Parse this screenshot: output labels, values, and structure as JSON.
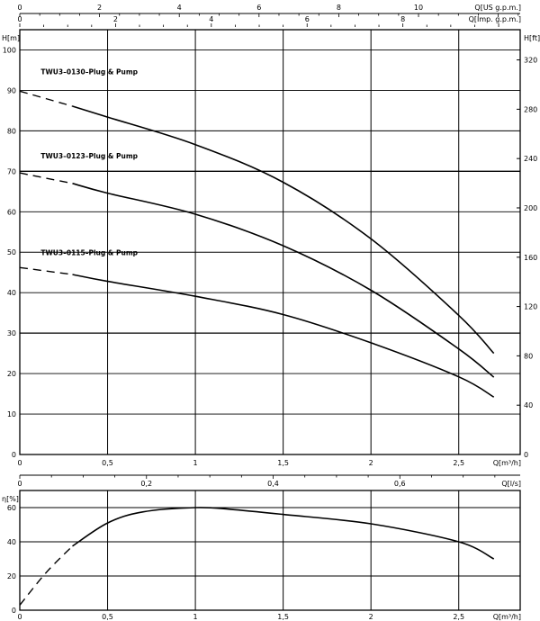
{
  "chart_data": [
    {
      "type": "line",
      "panel": "head",
      "x_axis_bottom": {
        "label": "Q[m³/h]",
        "range": [
          0,
          2.85
        ],
        "ticks": [
          0,
          0.5,
          1,
          1.5,
          2,
          2.5
        ],
        "tick_labels": [
          "0",
          "0,5",
          "1",
          "1,5",
          "2",
          "2,5"
        ]
      },
      "x_axis_top1": {
        "label": "Q[US g.p.m.]",
        "range": [
          0,
          12.55
        ],
        "ticks": [
          0,
          2,
          4,
          6,
          8,
          10
        ]
      },
      "x_axis_top2": {
        "label": "Q[Imp. g.p.m.]",
        "range": [
          0,
          10.45
        ],
        "ticks": [
          0,
          2,
          4,
          6,
          8
        ]
      },
      "y_axis_left": {
        "label": "H[m]",
        "range": [
          0,
          105
        ],
        "ticks": [
          0,
          10,
          20,
          30,
          40,
          50,
          60,
          70,
          80,
          90,
          100
        ]
      },
      "y_axis_right": {
        "label": "H[ft]",
        "range": [
          0,
          344.5
        ],
        "ticks": [
          0,
          40,
          80,
          120,
          160,
          200,
          240,
          280,
          320
        ]
      },
      "grid": true,
      "series": [
        {
          "name": "TWU3–0130–Plug & Pump",
          "dashed_points": [
            [
              0,
              89.8
            ],
            [
              0.3,
              86.1
            ]
          ],
          "points": [
            [
              0.3,
              86.1
            ],
            [
              0.5,
              83.4
            ],
            [
              1.0,
              76.6
            ],
            [
              1.5,
              67.3
            ],
            [
              2.0,
              53.3
            ],
            [
              2.5,
              34.4
            ],
            [
              2.7,
              25.0
            ]
          ]
        },
        {
          "name": "TWU3–0123–Plug & Pump",
          "dashed_points": [
            [
              0,
              69.6
            ],
            [
              0.3,
              67.0
            ]
          ],
          "points": [
            [
              0.3,
              67.0
            ],
            [
              0.5,
              64.6
            ],
            [
              1.0,
              59.4
            ],
            [
              1.5,
              51.6
            ],
            [
              2.0,
              40.6
            ],
            [
              2.5,
              26.1
            ],
            [
              2.7,
              19.1
            ]
          ]
        },
        {
          "name": "TWU3–0115–Plug & Pump",
          "dashed_points": [
            [
              0,
              46.2
            ],
            [
              0.3,
              44.5
            ]
          ],
          "points": [
            [
              0.3,
              44.5
            ],
            [
              0.5,
              42.8
            ],
            [
              1.0,
              39.1
            ],
            [
              1.5,
              34.6
            ],
            [
              2.0,
              27.6
            ],
            [
              2.5,
              19.2
            ],
            [
              2.7,
              14.2
            ]
          ]
        }
      ]
    },
    {
      "type": "line",
      "panel": "efficiency",
      "x_axis_bottom": {
        "label": "Q[m³/h]",
        "range": [
          0,
          2.85
        ],
        "ticks": [
          0,
          0.5,
          1,
          1.5,
          2,
          2.5
        ],
        "tick_labels": [
          "0",
          "0,5",
          "1",
          "1,5",
          "2",
          "2,5"
        ]
      },
      "x_axis_top": {
        "label": "Q[l/s]",
        "range": [
          0,
          0.79
        ],
        "ticks": [
          0,
          0.2,
          0.4,
          0.6
        ],
        "tick_labels": [
          "0",
          "0,2",
          "0,4",
          "0,6"
        ]
      },
      "y_axis_left": {
        "label": "η[%]",
        "range": [
          0,
          70
        ],
        "ticks": [
          0,
          20,
          40,
          60
        ]
      },
      "grid": true,
      "series": [
        {
          "name": "",
          "dashed_points": [
            [
              0,
              3
            ],
            [
              0.15,
              22
            ],
            [
              0.3,
              37.5
            ]
          ],
          "points": [
            [
              0.3,
              37.5
            ],
            [
              0.5,
              51
            ],
            [
              0.7,
              57.5
            ],
            [
              1.0,
              60
            ],
            [
              1.2,
              59
            ],
            [
              1.5,
              56
            ],
            [
              2.0,
              50.5
            ],
            [
              2.5,
              40
            ],
            [
              2.7,
              30
            ]
          ]
        }
      ]
    }
  ]
}
